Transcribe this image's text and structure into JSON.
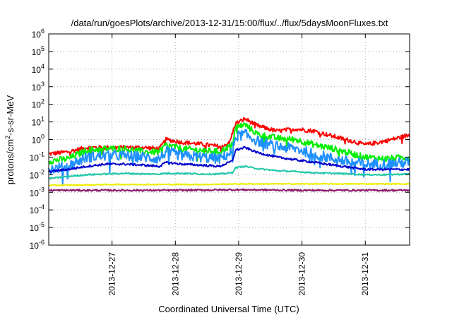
{
  "chart_data": {
    "type": "line",
    "title": "/data/run/goesPlots/archive/2013-12-31/15:00/flux/../flux/5daysMoonFluxes.txt",
    "xlabel": "Coordinated Universal Time (UTC)",
    "ylabel_prefix": "protons/cm",
    "ylabel_sup": "2",
    "ylabel_suffix": "-s-sr-MeV",
    "yscale": "log",
    "ylim_exp": [
      -6,
      6
    ],
    "ytick_exps": [
      -6,
      -5,
      -4,
      -3,
      -2,
      -1,
      0,
      1,
      2,
      3,
      4,
      5,
      6
    ],
    "ytick_base": "10",
    "xlim": [
      0,
      5.7
    ],
    "xticks": [
      {
        "x": 1,
        "label": "2013-12-27"
      },
      {
        "x": 2,
        "label": "2013-12-28"
      },
      {
        "x": 3,
        "label": "2013-12-29"
      },
      {
        "x": 4,
        "label": "2013-12-30"
      },
      {
        "x": 5,
        "label": "2013-12-31"
      }
    ],
    "grid": true,
    "series": [
      {
        "color": "#ff0000",
        "noise": 0.12,
        "points": [
          [
            0,
            0.15
          ],
          [
            0.3,
            0.2
          ],
          [
            0.6,
            0.35
          ],
          [
            0.9,
            0.35
          ],
          [
            1.2,
            0.35
          ],
          [
            1.5,
            0.35
          ],
          [
            1.75,
            0.3
          ],
          [
            1.85,
            1.0
          ],
          [
            2.1,
            0.7
          ],
          [
            2.3,
            0.6
          ],
          [
            2.5,
            0.5
          ],
          [
            2.7,
            0.4
          ],
          [
            2.85,
            0.6
          ],
          [
            2.95,
            8
          ],
          [
            3.1,
            15
          ],
          [
            3.3,
            6
          ],
          [
            3.6,
            3
          ],
          [
            3.9,
            4
          ],
          [
            4.2,
            3
          ],
          [
            4.5,
            1.5
          ],
          [
            4.8,
            0.8
          ],
          [
            5.0,
            0.5
          ],
          [
            5.3,
            0.8
          ],
          [
            5.7,
            1.8
          ]
        ]
      },
      {
        "color": "#00ee00",
        "noise": 0.18,
        "points": [
          [
            0,
            0.06
          ],
          [
            0.3,
            0.08
          ],
          [
            0.6,
            0.25
          ],
          [
            0.9,
            0.3
          ],
          [
            1.2,
            0.3
          ],
          [
            1.5,
            0.2
          ],
          [
            1.75,
            0.2
          ],
          [
            1.85,
            0.5
          ],
          [
            2.1,
            0.3
          ],
          [
            2.4,
            0.25
          ],
          [
            2.7,
            0.2
          ],
          [
            2.9,
            0.5
          ],
          [
            2.95,
            5
          ],
          [
            3.1,
            7
          ],
          [
            3.3,
            2
          ],
          [
            3.6,
            1.2
          ],
          [
            3.9,
            1.0
          ],
          [
            4.2,
            0.5
          ],
          [
            4.5,
            0.3
          ],
          [
            4.8,
            0.15
          ],
          [
            5.0,
            0.1
          ],
          [
            5.3,
            0.08
          ],
          [
            5.7,
            0.1
          ]
        ]
      },
      {
        "color": "#1e90ff",
        "noise": 0.3,
        "points": [
          [
            0,
            0.02
          ],
          [
            0.3,
            0.03
          ],
          [
            0.6,
            0.1
          ],
          [
            0.9,
            0.12
          ],
          [
            1.2,
            0.12
          ],
          [
            1.5,
            0.1
          ],
          [
            1.75,
            0.08
          ],
          [
            1.85,
            0.2
          ],
          [
            2.1,
            0.12
          ],
          [
            2.4,
            0.1
          ],
          [
            2.7,
            0.08
          ],
          [
            2.9,
            0.2
          ],
          [
            2.95,
            1.5
          ],
          [
            3.1,
            2
          ],
          [
            3.3,
            0.8
          ],
          [
            3.6,
            0.4
          ],
          [
            3.9,
            0.3
          ],
          [
            4.2,
            0.15
          ],
          [
            4.5,
            0.08
          ],
          [
            4.8,
            0.05
          ],
          [
            5.0,
            0.04
          ],
          [
            5.3,
            0.04
          ],
          [
            5.7,
            0.05
          ]
        ]
      },
      {
        "color": "#0000cd",
        "noise": 0.06,
        "points": [
          [
            0,
            0.015
          ],
          [
            0.3,
            0.02
          ],
          [
            0.6,
            0.03
          ],
          [
            0.9,
            0.04
          ],
          [
            1.2,
            0.04
          ],
          [
            1.5,
            0.035
          ],
          [
            1.75,
            0.03
          ],
          [
            1.85,
            0.05
          ],
          [
            2.1,
            0.04
          ],
          [
            2.4,
            0.035
          ],
          [
            2.7,
            0.03
          ],
          [
            2.9,
            0.06
          ],
          [
            2.95,
            0.25
          ],
          [
            3.1,
            0.35
          ],
          [
            3.3,
            0.18
          ],
          [
            3.6,
            0.1
          ],
          [
            3.9,
            0.07
          ],
          [
            4.2,
            0.05
          ],
          [
            4.5,
            0.035
          ],
          [
            4.8,
            0.025
          ],
          [
            5.0,
            0.02
          ],
          [
            5.3,
            0.02
          ],
          [
            5.7,
            0.02
          ]
        ]
      },
      {
        "color": "#20c8a8",
        "noise": 0.04,
        "points": [
          [
            0,
            0.006
          ],
          [
            0.3,
            0.008
          ],
          [
            0.6,
            0.01
          ],
          [
            0.9,
            0.011
          ],
          [
            1.2,
            0.012
          ],
          [
            1.5,
            0.011
          ],
          [
            1.75,
            0.011
          ],
          [
            1.85,
            0.012
          ],
          [
            2.1,
            0.012
          ],
          [
            2.4,
            0.011
          ],
          [
            2.7,
            0.011
          ],
          [
            2.9,
            0.013
          ],
          [
            2.95,
            0.025
          ],
          [
            3.1,
            0.03
          ],
          [
            3.3,
            0.022
          ],
          [
            3.6,
            0.017
          ],
          [
            3.9,
            0.015
          ],
          [
            4.2,
            0.013
          ],
          [
            4.5,
            0.012
          ],
          [
            4.8,
            0.011
          ],
          [
            5.0,
            0.01
          ],
          [
            5.3,
            0.01
          ],
          [
            5.7,
            0.011
          ]
        ]
      },
      {
        "color": "#eeee00",
        "noise": 0.03,
        "points": [
          [
            0,
            0.0025
          ],
          [
            0.5,
            0.0026
          ],
          [
            1.0,
            0.0028
          ],
          [
            1.5,
            0.0028
          ],
          [
            2.0,
            0.0028
          ],
          [
            2.5,
            0.0028
          ],
          [
            3.0,
            0.003
          ],
          [
            3.5,
            0.003
          ],
          [
            4.0,
            0.003
          ],
          [
            4.5,
            0.003
          ],
          [
            5.0,
            0.003
          ],
          [
            5.7,
            0.003
          ]
        ]
      },
      {
        "color": "#8b1a6b",
        "noise": 0.05,
        "points": [
          [
            0,
            0.0013
          ],
          [
            1.0,
            0.0013
          ],
          [
            2.0,
            0.0013
          ],
          [
            3.0,
            0.0014
          ],
          [
            4.0,
            0.0013
          ],
          [
            5.0,
            0.0013
          ],
          [
            5.7,
            0.0013
          ]
        ]
      }
    ]
  }
}
